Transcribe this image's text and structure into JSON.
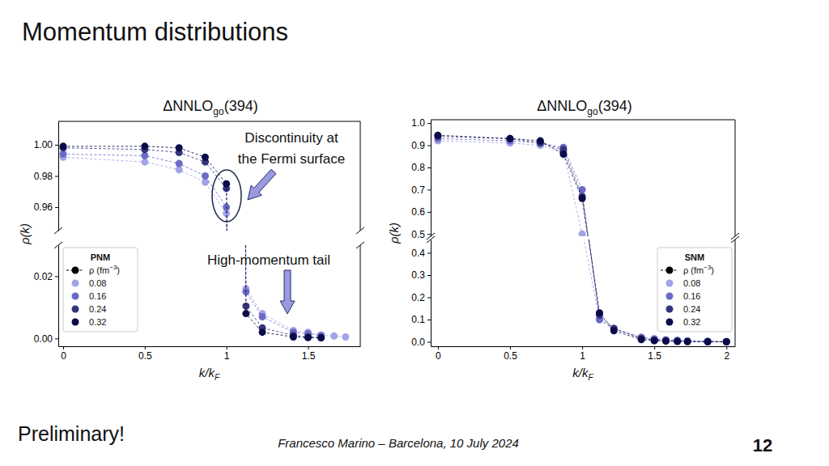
{
  "slide": {
    "title": "Momentum distributions",
    "note": "Preliminary!",
    "credit": "Francesco Marino – Barcelona, 10 July 2024",
    "page": 12
  },
  "chart_data": [
    {
      "type": "line",
      "title": [
        "ΔNNLO",
        "go",
        "(394)"
      ],
      "x_label": [
        "k/k",
        "F"
      ],
      "y_label": "ρ(k)",
      "legend": "lower left",
      "legend_title": "PNM",
      "legend_header": [
        "ρ (fm",
        "−3",
        ")"
      ],
      "marker": "circle",
      "line_style": "dashed",
      "grid": false,
      "x": [
        0,
        0.5,
        0.71,
        0.87,
        1,
        1.12,
        1.22,
        1.41,
        1.5,
        1.58,
        1.66,
        1.73
      ],
      "xlim": [
        -0.03,
        1.82
      ],
      "xticks": [
        0,
        0.5,
        1,
        1.5
      ],
      "panels": [
        {
          "ylim": [
            0.945,
            1.015
          ],
          "yticks": [
            0.96,
            0.98,
            {
              "value": 1,
              "label": "1.00"
            }
          ]
        },
        {
          "ylim": [
            -0.0025,
            0.03
          ],
          "yticks": [
            {
              "value": 0,
              "label": "0.00"
            },
            0.02
          ]
        }
      ],
      "series": [
        {
          "name": "0.08",
          "color": "#a3a3e8",
          "values": [
            0.992,
            0.989,
            0.984,
            0.976,
            0.956,
            0.016,
            0.008,
            0.0026,
            0.002,
            0.001,
            0.0008,
            0.0005
          ]
        },
        {
          "name": "0.16",
          "color": "#6b6bc6",
          "values": [
            0.994,
            0.993,
            0.988,
            0.98,
            0.96,
            0.015,
            0.007,
            0.002,
            0.0015,
            0.001,
            null,
            null
          ]
        },
        {
          "name": "0.24",
          "color": "#34347e",
          "values": [
            0.998,
            0.997,
            0.995,
            0.989,
            0.972,
            0.0104,
            0.0034,
            0.001,
            0.0005,
            0.0003,
            null,
            null
          ]
        },
        {
          "name": "0.32",
          "color": "#0b0b48",
          "values": [
            0.999,
            0.999,
            0.998,
            0.992,
            0.975,
            0.008,
            0.002,
            0.0005,
            0.0003,
            0.0002,
            null,
            null
          ]
        }
      ],
      "annotations": [
        {
          "text": [
            "Discontinuity at",
            "the Fermi surface"
          ]
        },
        {
          "text": [
            "High-momentum tail"
          ]
        }
      ]
    },
    {
      "type": "line",
      "title": [
        "ΔNNLO",
        "go",
        "(394)"
      ],
      "x_label": [
        "k/k",
        "F"
      ],
      "y_label": "ρ(k)",
      "legend": "lower right",
      "legend_title": "SNM",
      "legend_header": [
        "ρ (fm",
        "−3",
        ")"
      ],
      "marker": "circle",
      "line_style": "dashed",
      "grid": false,
      "x": [
        0,
        0.5,
        0.71,
        0.87,
        1,
        1.12,
        1.22,
        1.41,
        1.5,
        1.58,
        1.66,
        1.73,
        1.87,
        2
      ],
      "xlim": [
        -0.05,
        2.06
      ],
      "xticks": [
        0,
        0.5,
        1,
        1.5,
        2
      ],
      "panels": [
        {
          "ylim": [
            0.49,
            1.015
          ],
          "yticks": [
            0.5,
            0.6,
            0.7,
            0.8,
            0.9,
            {
              "value": 1,
              "label": "1.0"
            }
          ]
        },
        {
          "ylim": [
            -0.02,
            0.46
          ],
          "yticks": [
            {
              "value": 0,
              "label": "0.0"
            },
            0.1,
            0.2,
            0.3,
            0.4
          ]
        }
      ],
      "series": [
        {
          "name": "0.08",
          "color": "#a3a3e8",
          "values": [
            0.92,
            0.91,
            0.9,
            0.87,
            0.5,
            0.1,
            0.055,
            0.02,
            0.015,
            0.01,
            0.008,
            0.005,
            0.003,
            0.002
          ]
        },
        {
          "name": "0.16",
          "color": "#6b6bc6",
          "values": [
            0.93,
            0.92,
            0.91,
            0.89,
            0.7,
            0.1,
            0.06,
            0.02,
            0.012,
            0.008,
            0.005,
            0.003,
            0.002,
            0.001
          ]
        },
        {
          "name": "0.24",
          "color": "#34347e",
          "values": [
            0.94,
            0.93,
            0.91,
            0.88,
            0.67,
            0.12,
            0.06,
            0.015,
            0.008,
            0.005,
            0.003,
            0.002,
            0.001,
            0
          ]
        },
        {
          "name": "0.32",
          "color": "#0b0b48",
          "values": [
            0.945,
            0.93,
            0.92,
            0.86,
            0.66,
            0.13,
            0.05,
            0.01,
            0.005,
            0.003,
            0.002,
            0.001,
            0,
            0
          ]
        }
      ]
    }
  ]
}
